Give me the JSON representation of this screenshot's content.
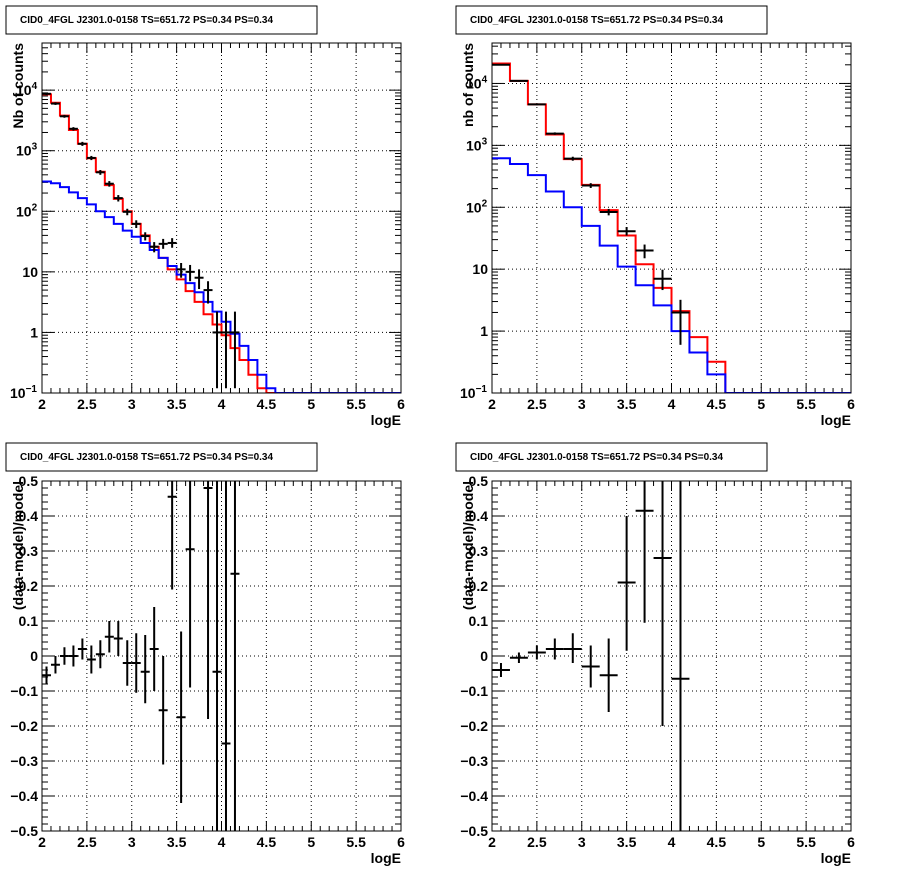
{
  "chart_data": [
    {
      "type": "step-histogram",
      "title": "CID0_4FGL J2301.0-0158 TS=651.72 PS=0.34 PS=0.34",
      "xlabel": "logE",
      "ylabel": "Nb of counts",
      "xlim": [
        2,
        6
      ],
      "ylim": [
        0.1,
        60000
      ],
      "yscale": "log",
      "grid": true,
      "x_ticks": [
        "2",
        "2.5",
        "3",
        "3.5",
        "4",
        "4.5",
        "5",
        "5.5",
        "6"
      ],
      "y_ticks": [
        {
          "v": 0.1,
          "label": "10",
          "sup": "−1"
        },
        {
          "v": 1,
          "label": "1",
          "sup": ""
        },
        {
          "v": 10,
          "label": "10",
          "sup": ""
        },
        {
          "v": 100,
          "label": "10",
          "sup": "2"
        },
        {
          "v": 1000,
          "label": "10",
          "sup": "3"
        },
        {
          "v": 10000,
          "label": "10",
          "sup": "4"
        }
      ],
      "bin_edges": [
        2.0,
        2.1,
        2.2,
        2.3,
        2.4,
        2.5,
        2.6,
        2.7,
        2.8,
        2.9,
        3.0,
        3.1,
        3.2,
        3.3,
        3.4,
        3.5,
        3.6,
        3.7,
        3.8,
        3.9,
        4.0,
        4.1,
        4.2,
        4.3,
        4.4,
        4.5,
        4.6,
        4.7,
        4.8,
        4.9,
        5.0,
        5.1,
        5.2,
        5.3,
        5.4,
        5.5,
        5.6,
        5.7,
        5.8,
        5.9,
        6.0
      ],
      "series": [
        {
          "color": "#ff0000",
          "values": [
            8500,
            6200,
            3800,
            2200,
            1300,
            750,
            450,
            270,
            160,
            100,
            62,
            40,
            26,
            17,
            11,
            7.5,
            4.8,
            3.2,
            2.0,
            1.35,
            0.9,
            0.55,
            0.35,
            0.2,
            0.12,
            0.1,
            0.1,
            0.1,
            0.1,
            0.1,
            0.1,
            0.1,
            0.1,
            0.1,
            0.1,
            0.1,
            0.1,
            0.1,
            0.1,
            0.1
          ]
        },
        {
          "color": "#0000ff",
          "values": [
            310,
            290,
            250,
            205,
            165,
            130,
            100,
            80,
            62,
            48,
            38,
            30,
            23,
            17,
            12.5,
            9,
            6.5,
            4.6,
            3.2,
            2.2,
            1.5,
            0.95,
            0.6,
            0.35,
            0.2,
            0.12,
            0.1,
            0.1,
            0.1,
            0.1,
            0.1,
            0.1,
            0.1,
            0.1,
            0.1,
            0.1,
            0.1,
            0.1,
            0.1,
            0.1
          ]
        }
      ],
      "points": [
        {
          "x": 2.05,
          "y": 8700,
          "lo": 8300,
          "hi": 9100
        },
        {
          "x": 2.15,
          "y": 6000,
          "lo": 5700,
          "hi": 6300
        },
        {
          "x": 2.25,
          "y": 3700,
          "lo": 3500,
          "hi": 3900
        },
        {
          "x": 2.35,
          "y": 2300,
          "lo": 2150,
          "hi": 2450
        },
        {
          "x": 2.45,
          "y": 1300,
          "lo": 1200,
          "hi": 1400
        },
        {
          "x": 2.55,
          "y": 760,
          "lo": 700,
          "hi": 820
        },
        {
          "x": 2.65,
          "y": 440,
          "lo": 400,
          "hi": 480
        },
        {
          "x": 2.75,
          "y": 285,
          "lo": 255,
          "hi": 315
        },
        {
          "x": 2.85,
          "y": 165,
          "lo": 145,
          "hi": 185
        },
        {
          "x": 2.95,
          "y": 98,
          "lo": 86,
          "hi": 110
        },
        {
          "x": 3.05,
          "y": 62,
          "lo": 53,
          "hi": 71
        },
        {
          "x": 3.15,
          "y": 39,
          "lo": 33,
          "hi": 45
        },
        {
          "x": 3.25,
          "y": 26,
          "lo": 21,
          "hi": 31
        },
        {
          "x": 3.35,
          "y": 29,
          "lo": 24,
          "hi": 35
        },
        {
          "x": 3.45,
          "y": 30,
          "lo": 25,
          "hi": 36
        },
        {
          "x": 3.55,
          "y": 11,
          "lo": 8,
          "hi": 14
        },
        {
          "x": 3.65,
          "y": 10,
          "lo": 7,
          "hi": 13
        },
        {
          "x": 3.75,
          "y": 8,
          "lo": 5.2,
          "hi": 11
        },
        {
          "x": 3.85,
          "y": 5,
          "lo": 3,
          "hi": 7
        },
        {
          "x": 3.95,
          "y": 1,
          "lo": 0.12,
          "hi": 2.2
        },
        {
          "x": 4.05,
          "y": 1,
          "lo": 0.12,
          "hi": 2.2
        },
        {
          "x": 4.15,
          "y": 1,
          "lo": 0.12,
          "hi": 2.2
        }
      ]
    },
    {
      "type": "step-histogram",
      "title": "CID0_4FGL J2301.0-0158 TS=651.72 PS=0.34 PS=0.34",
      "xlabel": "logE",
      "ylabel": "nb of counts",
      "xlim": [
        2,
        6
      ],
      "ylim": [
        0.1,
        45000
      ],
      "yscale": "log",
      "grid": true,
      "x_ticks": [
        "2",
        "2.5",
        "3",
        "3.5",
        "4",
        "4.5",
        "5",
        "5.5",
        "6"
      ],
      "y_ticks": [
        {
          "v": 0.1,
          "label": "10",
          "sup": "−1"
        },
        {
          "v": 1,
          "label": "1",
          "sup": ""
        },
        {
          "v": 10,
          "label": "10",
          "sup": ""
        },
        {
          "v": 100,
          "label": "10",
          "sup": "2"
        },
        {
          "v": 1000,
          "label": "10",
          "sup": "3"
        },
        {
          "v": 10000,
          "label": "10",
          "sup": "4"
        }
      ],
      "bin_edges": [
        2.0,
        2.2,
        2.4,
        2.6,
        2.8,
        3.0,
        3.2,
        3.4,
        3.6,
        3.8,
        4.0,
        4.2,
        4.4,
        4.6,
        4.8,
        5.0,
        5.2,
        5.4,
        5.6,
        5.8,
        6.0
      ],
      "series": [
        {
          "color": "#ff0000",
          "values": [
            21000,
            11000,
            4600,
            1500,
            600,
            230,
            90,
            35,
            12,
            5,
            2.1,
            0.8,
            0.32,
            0.1,
            0.1,
            0.1,
            0.1,
            0.1,
            0.1,
            0.1
          ]
        },
        {
          "color": "#0000ff",
          "values": [
            620,
            500,
            330,
            180,
            100,
            50,
            24,
            11,
            5.5,
            2.6,
            1.0,
            0.45,
            0.2,
            0.1,
            0.1,
            0.1,
            0.1,
            0.1,
            0.1,
            0.1
          ]
        }
      ],
      "points": [
        {
          "x": 2.1,
          "y": 20000,
          "lo": 19500,
          "hi": 20500
        },
        {
          "x": 2.3,
          "y": 11000,
          "lo": 10700,
          "hi": 11300
        },
        {
          "x": 2.5,
          "y": 4600,
          "lo": 4450,
          "hi": 4750
        },
        {
          "x": 2.7,
          "y": 1550,
          "lo": 1480,
          "hi": 1620
        },
        {
          "x": 2.9,
          "y": 610,
          "lo": 565,
          "hi": 655
        },
        {
          "x": 3.1,
          "y": 225,
          "lo": 205,
          "hi": 245
        },
        {
          "x": 3.3,
          "y": 84,
          "lo": 74,
          "hi": 94
        },
        {
          "x": 3.5,
          "y": 41,
          "lo": 35,
          "hi": 48
        },
        {
          "x": 3.7,
          "y": 20,
          "lo": 15,
          "hi": 25
        },
        {
          "x": 3.9,
          "y": 7,
          "lo": 4.6,
          "hi": 9.8
        },
        {
          "x": 4.1,
          "y": 2,
          "lo": 0.6,
          "hi": 3.2
        }
      ]
    },
    {
      "type": "scatter-errorbars",
      "title": "CID0_4FGL J2301.0-0158 TS=651.72 PS=0.34 PS=0.34",
      "xlabel": "logE",
      "ylabel": "(data-model)/model",
      "xlim": [
        2,
        6
      ],
      "ylim": [
        -0.5,
        0.5
      ],
      "yscale": "linear",
      "grid": true,
      "x_ticks": [
        "2",
        "2.5",
        "3",
        "3.5",
        "4",
        "4.5",
        "5",
        "5.5",
        "6"
      ],
      "y_ticks": [
        {
          "v": -0.5,
          "label": "−0.5",
          "sup": ""
        },
        {
          "v": -0.4,
          "label": "−0.4",
          "sup": ""
        },
        {
          "v": -0.3,
          "label": "−0.3",
          "sup": ""
        },
        {
          "v": -0.2,
          "label": "−0.2",
          "sup": ""
        },
        {
          "v": -0.1,
          "label": "−0.1",
          "sup": ""
        },
        {
          "v": 0,
          "label": "0",
          "sup": ""
        },
        {
          "v": 0.1,
          "label": "0.1",
          "sup": ""
        },
        {
          "v": 0.2,
          "label": "0.2",
          "sup": ""
        },
        {
          "v": 0.3,
          "label": "0.3",
          "sup": ""
        },
        {
          "v": 0.4,
          "label": "0.4",
          "sup": ""
        },
        {
          "v": 0.5,
          "label": "0.5",
          "sup": ""
        }
      ],
      "bin_width": 0.1,
      "points": [
        {
          "x": 2.05,
          "y": -0.055,
          "lo": -0.08,
          "hi": -0.03
        },
        {
          "x": 2.15,
          "y": -0.025,
          "lo": -0.05,
          "hi": 0.0
        },
        {
          "x": 2.25,
          "y": 0.0,
          "lo": -0.025,
          "hi": 0.025
        },
        {
          "x": 2.35,
          "y": 0.0,
          "lo": -0.03,
          "hi": 0.03
        },
        {
          "x": 2.45,
          "y": 0.02,
          "lo": -0.01,
          "hi": 0.05
        },
        {
          "x": 2.55,
          "y": -0.01,
          "lo": -0.05,
          "hi": 0.03
        },
        {
          "x": 2.65,
          "y": 0.005,
          "lo": -0.035,
          "hi": 0.045
        },
        {
          "x": 2.75,
          "y": 0.055,
          "lo": 0.01,
          "hi": 0.1
        },
        {
          "x": 2.85,
          "y": 0.05,
          "lo": 0.0,
          "hi": 0.1
        },
        {
          "x": 2.95,
          "y": -0.02,
          "lo": -0.085,
          "hi": 0.045
        },
        {
          "x": 3.05,
          "y": -0.02,
          "lo": -0.105,
          "hi": 0.065
        },
        {
          "x": 3.15,
          "y": -0.045,
          "lo": -0.135,
          "hi": 0.06
        },
        {
          "x": 3.25,
          "y": 0.02,
          "lo": -0.1,
          "hi": 0.14
        },
        {
          "x": 3.35,
          "y": -0.155,
          "lo": -0.31,
          "hi": 0.0
        },
        {
          "x": 3.45,
          "y": 0.455,
          "lo": 0.19,
          "hi": 0.72
        },
        {
          "x": 3.55,
          "y": -0.175,
          "lo": -0.42,
          "hi": 0.07
        },
        {
          "x": 3.65,
          "y": 0.305,
          "lo": -0.09,
          "hi": 0.7
        },
        {
          "x": 3.85,
          "y": 0.48,
          "lo": -0.18,
          "hi": 1.1
        },
        {
          "x": 3.95,
          "y": -0.045,
          "lo": -0.7,
          "hi": 0.6
        },
        {
          "x": 4.05,
          "y": -0.25,
          "lo": -0.7,
          "hi": 0.6
        },
        {
          "x": 4.15,
          "y": 0.235,
          "lo": -0.7,
          "hi": 0.7
        }
      ]
    },
    {
      "type": "scatter-errorbars",
      "title": "CID0_4FGL J2301.0-0158 TS=651.72 PS=0.34 PS=0.34",
      "xlabel": "logE",
      "ylabel": "(data-model)/model",
      "xlim": [
        2,
        6
      ],
      "ylim": [
        -0.5,
        0.5
      ],
      "yscale": "linear",
      "grid": true,
      "x_ticks": [
        "2",
        "2.5",
        "3",
        "3.5",
        "4",
        "4.5",
        "5",
        "5.5",
        "6"
      ],
      "y_ticks": [
        {
          "v": -0.5,
          "label": "−0.5",
          "sup": ""
        },
        {
          "v": -0.4,
          "label": "−0.4",
          "sup": ""
        },
        {
          "v": -0.3,
          "label": "−0.3",
          "sup": ""
        },
        {
          "v": -0.2,
          "label": "−0.2",
          "sup": ""
        },
        {
          "v": -0.1,
          "label": "−0.1",
          "sup": ""
        },
        {
          "v": 0,
          "label": "0",
          "sup": ""
        },
        {
          "v": 0.1,
          "label": "0.1",
          "sup": ""
        },
        {
          "v": 0.2,
          "label": "0.2",
          "sup": ""
        },
        {
          "v": 0.3,
          "label": "0.3",
          "sup": ""
        },
        {
          "v": 0.4,
          "label": "0.4",
          "sup": ""
        },
        {
          "v": 0.5,
          "label": "0.5",
          "sup": ""
        }
      ],
      "bin_width": 0.2,
      "points": [
        {
          "x": 2.1,
          "y": -0.04,
          "lo": -0.06,
          "hi": -0.02
        },
        {
          "x": 2.3,
          "y": -0.005,
          "lo": -0.02,
          "hi": 0.01
        },
        {
          "x": 2.5,
          "y": 0.01,
          "lo": -0.01,
          "hi": 0.03
        },
        {
          "x": 2.7,
          "y": 0.02,
          "lo": -0.01,
          "hi": 0.05
        },
        {
          "x": 2.9,
          "y": 0.02,
          "lo": -0.02,
          "hi": 0.065
        },
        {
          "x": 3.1,
          "y": -0.03,
          "lo": -0.09,
          "hi": 0.03
        },
        {
          "x": 3.3,
          "y": -0.055,
          "lo": -0.16,
          "hi": 0.05
        },
        {
          "x": 3.5,
          "y": 0.21,
          "lo": 0.015,
          "hi": 0.4
        },
        {
          "x": 3.7,
          "y": 0.415,
          "lo": 0.095,
          "hi": 0.73
        },
        {
          "x": 3.9,
          "y": 0.28,
          "lo": -0.2,
          "hi": 0.75
        },
        {
          "x": 4.1,
          "y": -0.065,
          "lo": -0.7,
          "hi": 0.6
        }
      ]
    }
  ]
}
